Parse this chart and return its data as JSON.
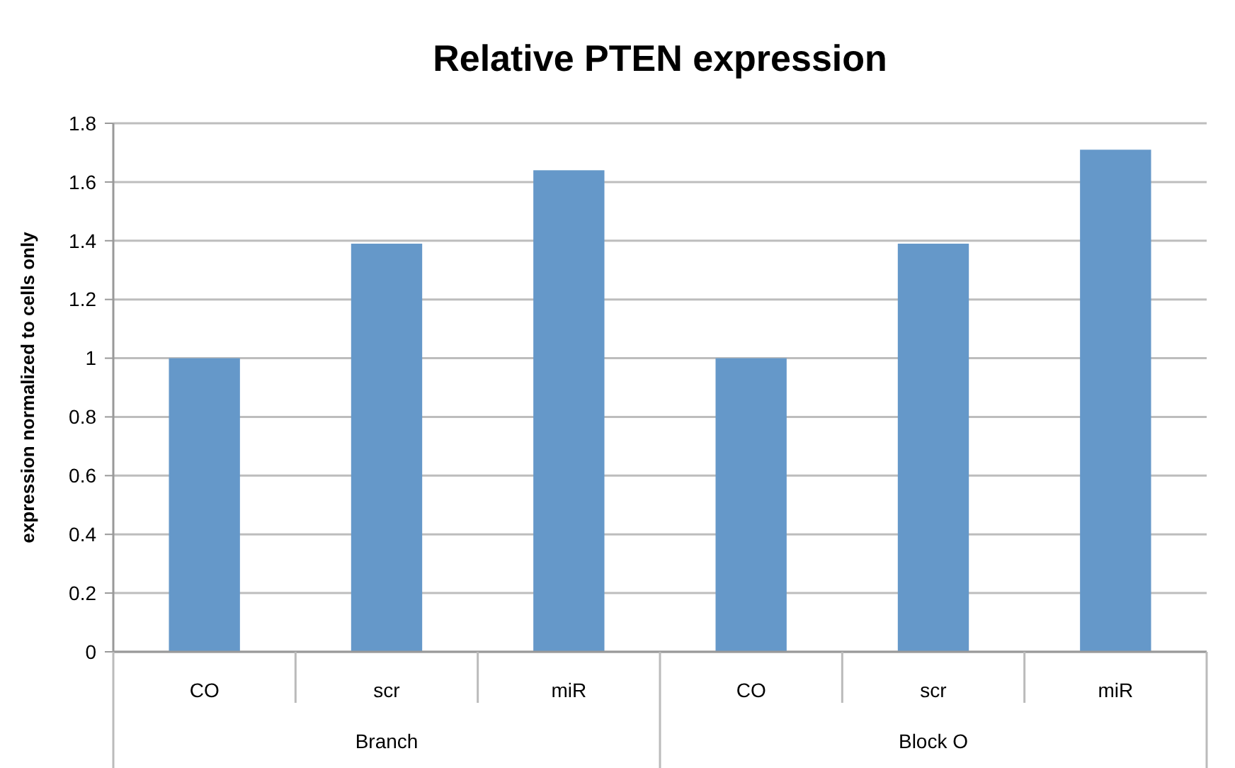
{
  "chart_data": {
    "type": "bar",
    "title": "Relative PTEN expression",
    "ylabel": "expression normalized to cells only",
    "categories": [
      "CO",
      "scr",
      "miR",
      "CO",
      "scr",
      "miR"
    ],
    "values": [
      1.0,
      1.39,
      1.64,
      1.0,
      1.39,
      1.71
    ],
    "color": "#6598c9",
    "ylim": [
      0,
      1.8
    ],
    "yticks": [
      0,
      {
        "value": 0.2,
        "label": "0.2"
      },
      {
        "value": 0.4,
        "label": "0.4"
      },
      {
        "value": 0.6,
        "label": "0.6"
      },
      {
        "value": 0.8,
        "label": "0.8"
      },
      1,
      {
        "value": 1.2,
        "label": "1.2"
      },
      {
        "value": 1.4,
        "label": "1.4"
      },
      {
        "value": 1.6,
        "label": "1.6"
      },
      {
        "value": 1.8,
        "label": "1.8"
      }
    ],
    "grid": "y",
    "annotations": [
      "Branch",
      "Block O"
    ]
  }
}
